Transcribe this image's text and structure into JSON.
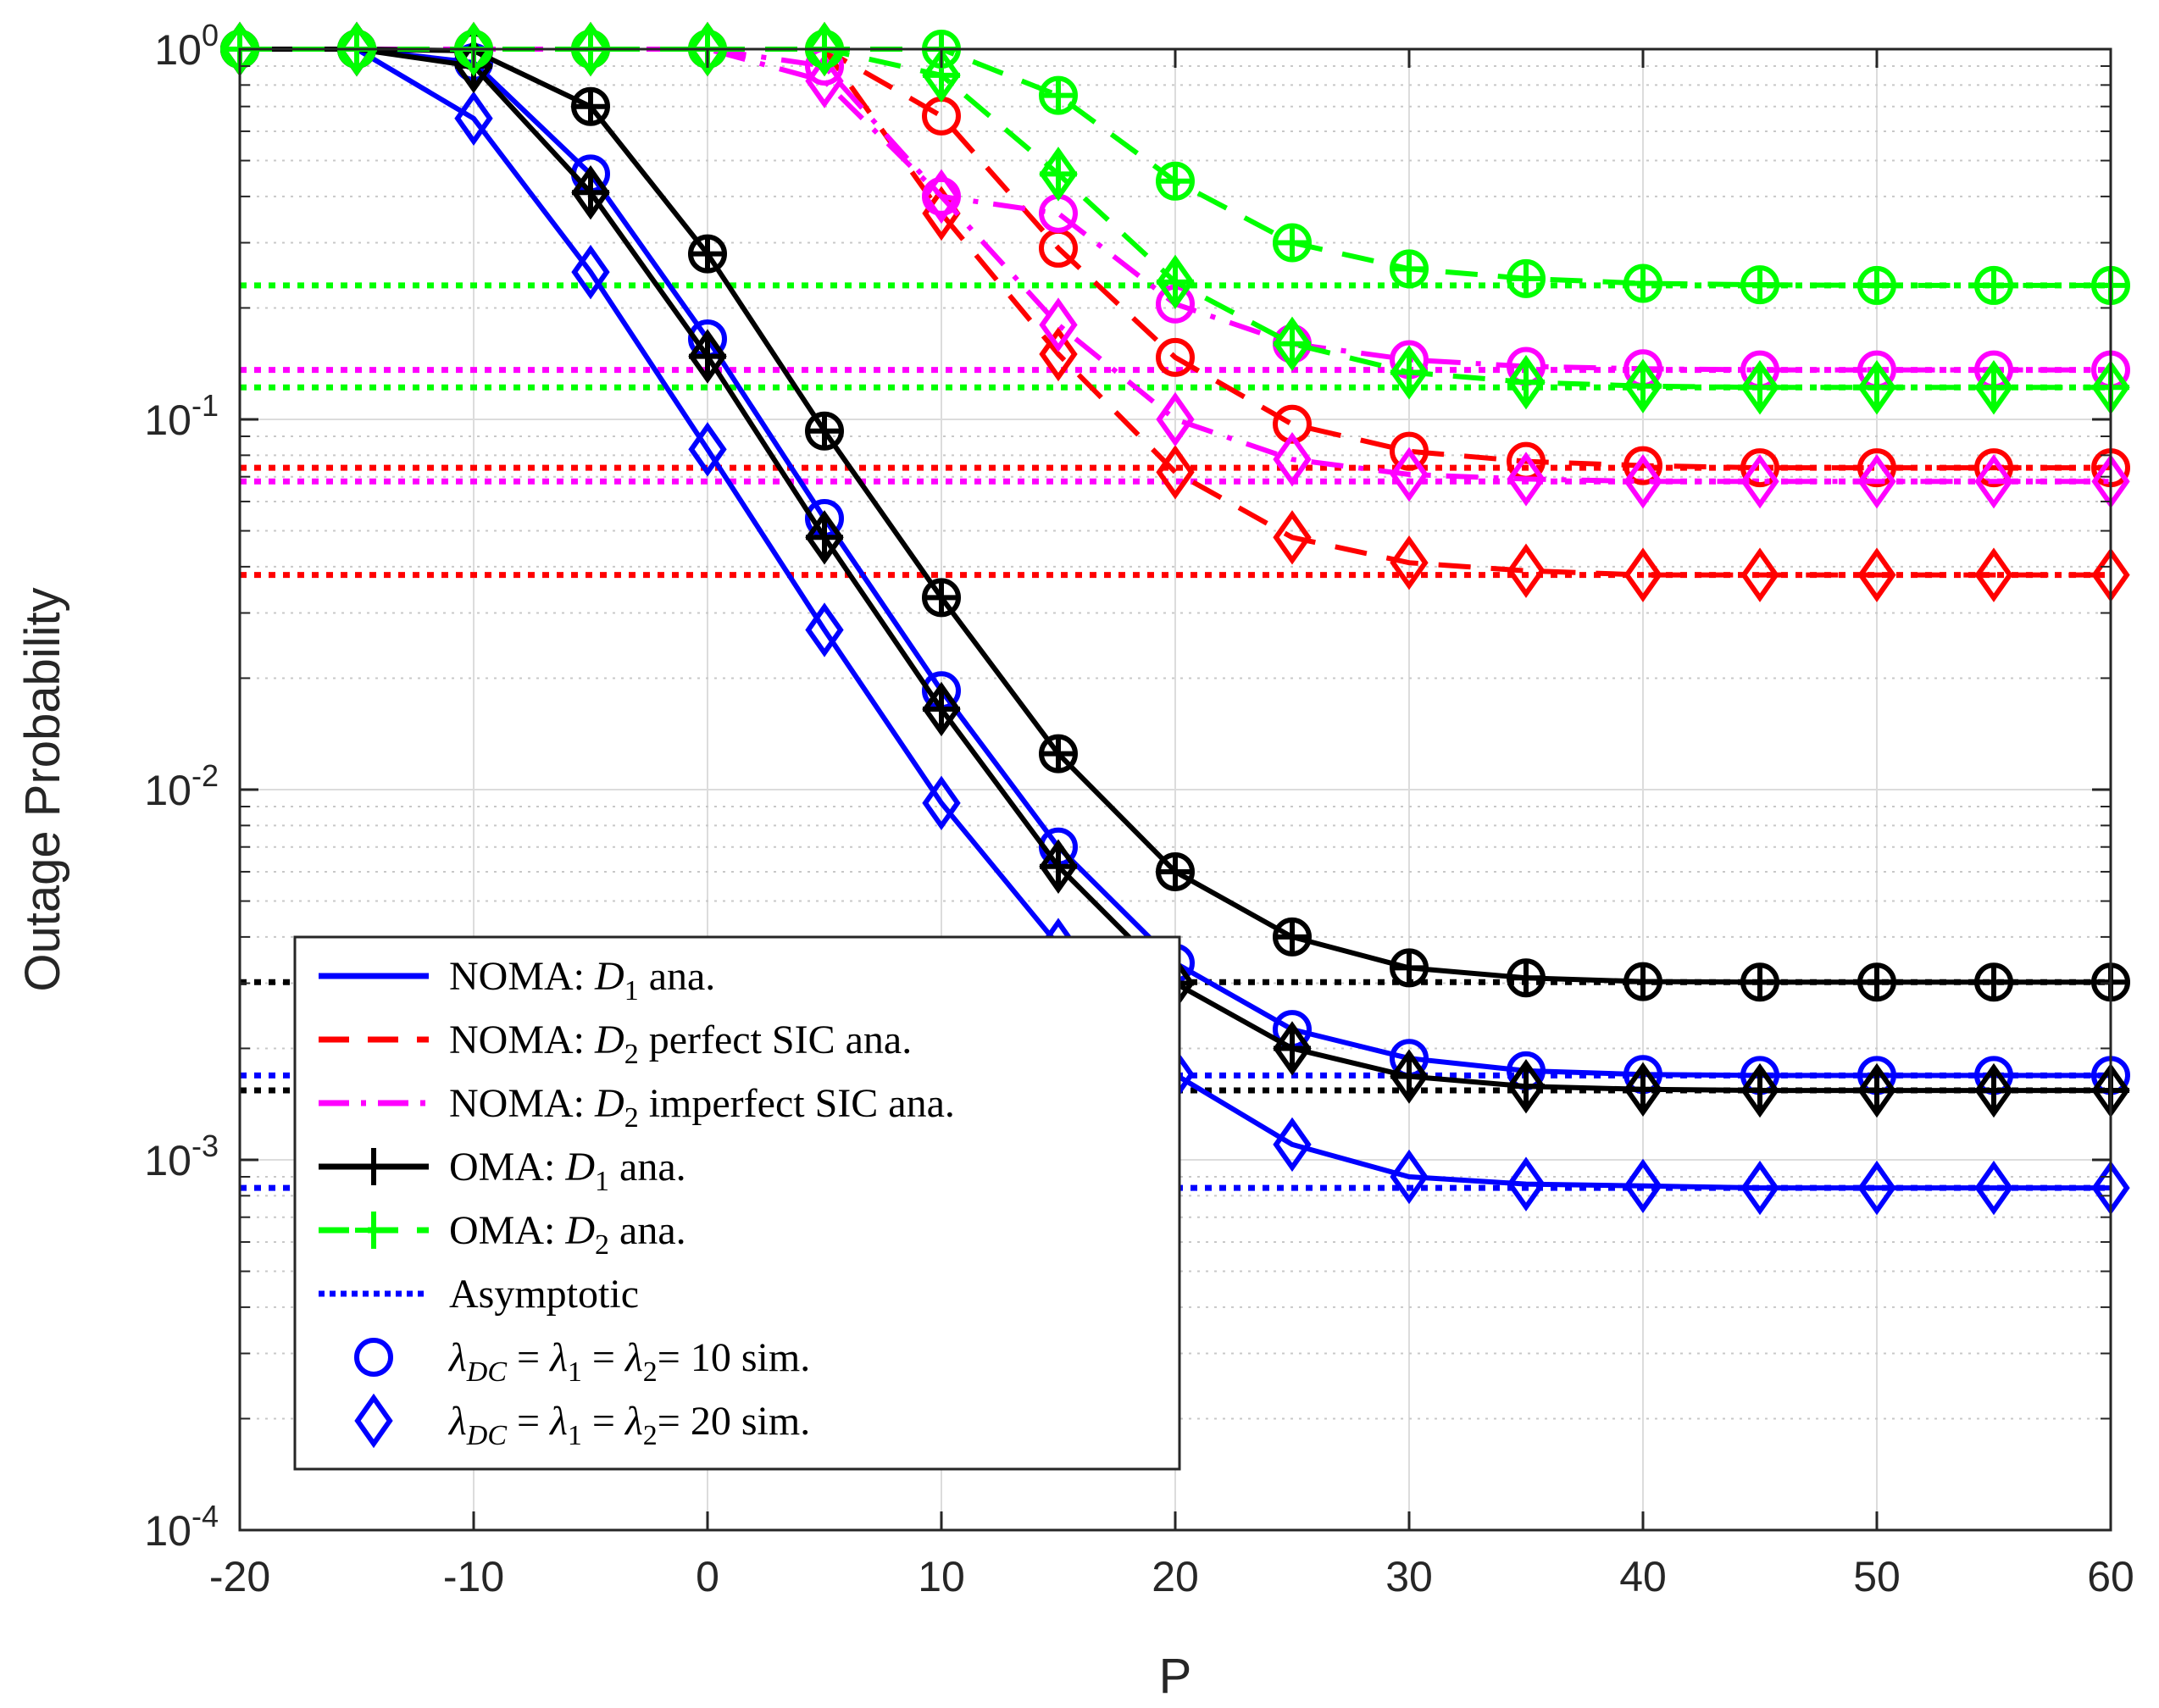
{
  "chart_data": {
    "type": "line",
    "ylabel": "Outage Probability",
    "xlabel": "P",
    "xlim": [
      -20,
      60
    ],
    "yscale": "log",
    "ylim": [
      0.0001,
      1
    ],
    "grid": true,
    "x_ticks": [
      -20,
      -10,
      0,
      10,
      20,
      30,
      40,
      50,
      60
    ],
    "x_tick_labels": [
      "-20",
      "-10",
      "0",
      "10",
      "20",
      "30",
      "40",
      "50",
      "60"
    ],
    "y_ticks": [
      1,
      0.1,
      0.01,
      0.001,
      0.0001
    ],
    "y_tick_labels": [
      {
        "base": "10",
        "exp": "0"
      },
      {
        "base": "10",
        "exp": "-1"
      },
      {
        "base": "10",
        "exp": "-2"
      },
      {
        "base": "10",
        "exp": "-3"
      },
      {
        "base": "10",
        "exp": "-4"
      }
    ],
    "x": [
      -20,
      -15,
      -10,
      -5,
      0,
      5,
      10,
      15,
      20,
      25,
      30,
      35,
      40,
      45,
      50,
      55,
      60
    ],
    "series": [
      {
        "name": "NOMA D1 ana. λ=10",
        "color": "#0000FF",
        "style": "solid",
        "marker": "circle",
        "values": [
          1.0,
          1.0,
          0.92,
          0.46,
          0.165,
          0.054,
          0.0185,
          0.007,
          0.0034,
          0.00225,
          0.00188,
          0.00174,
          0.0017,
          0.00169,
          0.00169,
          0.00169,
          0.00169
        ]
      },
      {
        "name": "NOMA D1 ana. λ=20",
        "color": "#0000FF",
        "style": "solid",
        "marker": "diamond",
        "values": [
          1.0,
          1.0,
          0.65,
          0.25,
          0.083,
          0.027,
          0.0092,
          0.0038,
          0.0017,
          0.0011,
          0.0009,
          0.00086,
          0.00085,
          0.00084,
          0.00084,
          0.00084,
          0.00084
        ]
      },
      {
        "name": "NOMA D2 perfect SIC ana. λ=10",
        "color": "#FF0000",
        "style": "dashed",
        "marker": "circle",
        "values": [
          1.0,
          1.0,
          1.0,
          1.0,
          1.0,
          1.0,
          0.66,
          0.29,
          0.147,
          0.097,
          0.082,
          0.077,
          0.075,
          0.074,
          0.074,
          0.074,
          0.074
        ]
      },
      {
        "name": "NOMA D2 perfect SIC ana. λ=20",
        "color": "#FF0000",
        "style": "dashed",
        "marker": "diamond",
        "values": [
          1.0,
          1.0,
          1.0,
          1.0,
          1.0,
          1.0,
          0.36,
          0.15,
          0.072,
          0.048,
          0.041,
          0.039,
          0.038,
          0.038,
          0.038,
          0.038,
          0.038
        ]
      },
      {
        "name": "NOMA D2 imperfect SIC ana. λ=10",
        "color": "#FF00FF",
        "style": "dashdot",
        "marker": "circle",
        "values": [
          1.0,
          1.0,
          1.0,
          1.0,
          1.0,
          0.9,
          0.4,
          0.36,
          0.205,
          0.16,
          0.145,
          0.139,
          0.137,
          0.136,
          0.136,
          0.136,
          0.136
        ]
      },
      {
        "name": "NOMA D2 imperfect SIC ana. λ=20",
        "color": "#FF00FF",
        "style": "dashdot",
        "marker": "diamond",
        "values": [
          1.0,
          1.0,
          1.0,
          1.0,
          1.0,
          0.82,
          0.4,
          0.18,
          0.1,
          0.078,
          0.071,
          0.069,
          0.068,
          0.068,
          0.068,
          0.068,
          0.068
        ]
      },
      {
        "name": "OMA D1 ana. λ=10",
        "color": "#000000",
        "style": "solid",
        "marker": "plus-circle",
        "values": [
          1.0,
          1.0,
          0.99,
          0.7,
          0.28,
          0.093,
          0.033,
          0.0125,
          0.006,
          0.004,
          0.0033,
          0.0031,
          0.00303,
          0.00302,
          0.00302,
          0.00302,
          0.00302
        ]
      },
      {
        "name": "OMA D1 ana. λ=20",
        "color": "#000000",
        "style": "solid",
        "marker": "plus-diamond",
        "values": [
          1.0,
          1.0,
          0.9,
          0.41,
          0.148,
          0.048,
          0.0165,
          0.0062,
          0.003,
          0.002,
          0.00168,
          0.00158,
          0.00155,
          0.00154,
          0.00154,
          0.00154,
          0.00154
        ]
      },
      {
        "name": "OMA D2 ana. λ=10",
        "color": "#00FF00",
        "style": "dashed",
        "marker": "plus-circle",
        "values": [
          1.0,
          1.0,
          1.0,
          1.0,
          1.0,
          1.0,
          1.0,
          0.75,
          0.44,
          0.3,
          0.255,
          0.24,
          0.233,
          0.231,
          0.23,
          0.23,
          0.23
        ]
      },
      {
        "name": "OMA D2 ana. λ=20",
        "color": "#00FF00",
        "style": "dashed",
        "marker": "plus-diamond",
        "values": [
          1.0,
          1.0,
          1.0,
          1.0,
          1.0,
          1.0,
          0.85,
          0.46,
          0.235,
          0.16,
          0.134,
          0.126,
          0.123,
          0.122,
          0.122,
          0.122,
          0.122
        ]
      }
    ],
    "asymptotes": [
      {
        "value": 0.23,
        "color": "#00FF00"
      },
      {
        "value": 0.136,
        "color": "#FF00FF"
      },
      {
        "value": 0.122,
        "color": "#00FF00"
      },
      {
        "value": 0.074,
        "color": "#FF0000"
      },
      {
        "value": 0.068,
        "color": "#FF00FF"
      },
      {
        "value": 0.038,
        "color": "#FF0000"
      },
      {
        "value": 0.00302,
        "color": "#000000"
      },
      {
        "value": 0.00169,
        "color": "#0000FF"
      },
      {
        "value": 0.00154,
        "color": "#000000"
      },
      {
        "value": 0.00084,
        "color": "#0000FF"
      }
    ],
    "legend": {
      "placement": "lower-left",
      "entries": [
        {
          "prefix": "NOMA: ",
          "sym": "D",
          "sub": "1",
          "suffix": " ana.",
          "color": "#0000FF",
          "style": "solid"
        },
        {
          "prefix": "NOMA: ",
          "sym": "D",
          "sub": "2",
          "suffix": " perfect SIC ana.",
          "color": "#FF0000",
          "style": "dashed"
        },
        {
          "prefix": "NOMA: ",
          "sym": "D",
          "sub": "2",
          "suffix": " imperfect SIC ana.",
          "color": "#FF00FF",
          "style": "dashdot"
        },
        {
          "prefix": "OMA: ",
          "sym": "D",
          "sub": "1",
          "suffix": " ana.",
          "color": "#000000",
          "style": "solid",
          "marker": "plus"
        },
        {
          "prefix": "OMA: ",
          "sym": "D",
          "sub": "2",
          "suffix": " ana.",
          "color": "#00FF00",
          "style": "dashed",
          "marker": "plus"
        },
        {
          "prefix": "Asymptotic",
          "sym": "",
          "sub": "",
          "suffix": "",
          "color": "#0000FF",
          "style": "dotted"
        },
        {
          "lambda": true,
          "value": "= 10 sim.",
          "color": "#0000FF",
          "style": "none",
          "marker": "circle"
        },
        {
          "lambda": true,
          "value": "= 20 sim.",
          "color": "#0000FF",
          "style": "none",
          "marker": "diamond"
        }
      ]
    }
  }
}
